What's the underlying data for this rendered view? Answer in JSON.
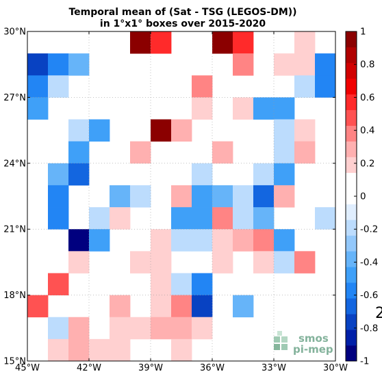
{
  "chart_data": {
    "type": "heatmap",
    "title_line1": "Temporal mean of (Sat - TSG (LEGOS-DM))",
    "title_line2": "in 1°x1° boxes over 2015-2020",
    "x_ticks": [
      {
        "value": -45,
        "label": "45°W"
      },
      {
        "value": -42,
        "label": "42°W"
      },
      {
        "value": -39,
        "label": "39°W"
      },
      {
        "value": -36,
        "label": "36°W"
      },
      {
        "value": -33,
        "label": "33°W"
      },
      {
        "value": -30,
        "label": "30°W"
      }
    ],
    "y_ticks": [
      {
        "value": 15,
        "label": "15°N"
      },
      {
        "value": 18,
        "label": "18°N"
      },
      {
        "value": 21,
        "label": "21°N"
      },
      {
        "value": 24,
        "label": "24°N"
      },
      {
        "value": 27,
        "label": "27°N"
      },
      {
        "value": 30,
        "label": "30°N"
      }
    ],
    "xlim": [
      -45,
      -30
    ],
    "ylim": [
      15,
      30
    ],
    "grid": true,
    "colorbar": {
      "vmin": -1,
      "vmax": 1,
      "step": 0.1,
      "tick_labels": [
        {
          "value": 1,
          "label": "1"
        },
        {
          "value": 0.8,
          "label": "0.8"
        },
        {
          "value": 0.6,
          "label": "0.6"
        },
        {
          "value": 0.4,
          "label": "0.4"
        },
        {
          "value": 0.2,
          "label": "0.2"
        },
        {
          "value": 0,
          "label": "0"
        },
        {
          "value": -0.2,
          "label": "-0.2"
        },
        {
          "value": -0.4,
          "label": "-0.4"
        },
        {
          "value": -0.6,
          "label": "-0.6"
        },
        {
          "value": -0.8,
          "label": "-0.8"
        },
        {
          "value": -1,
          "label": "-1"
        }
      ],
      "colors": [
        "#00007f",
        "#001fa8",
        "#0842c2",
        "#1366e0",
        "#2285f4",
        "#3fa0f8",
        "#66b4f9",
        "#93c8fb",
        "#bcdcfd",
        "#e0eefe",
        "#ffffff",
        "#ffffff",
        "#ffd0d0",
        "#ffb0b0",
        "#ff8484",
        "#ff5252",
        "#ff2a2a",
        "#f00000",
        "#d10000",
        "#b00000",
        "#8b0000"
      ]
    },
    "cells": [
      {
        "lon": -39.5,
        "lat": 29.5,
        "value": 0.95
      },
      {
        "lon": -38.5,
        "lat": 29.5,
        "value": 0.55
      },
      {
        "lon": -35.5,
        "lat": 29.5,
        "value": 0.95
      },
      {
        "lon": -34.5,
        "lat": 29.5,
        "value": 0.55
      },
      {
        "lon": -31.5,
        "lat": 29.5,
        "value": 0.15
      },
      {
        "lon": -44.5,
        "lat": 28.5,
        "value": -0.75
      },
      {
        "lon": -43.5,
        "lat": 28.5,
        "value": -0.55
      },
      {
        "lon": -42.5,
        "lat": 28.5,
        "value": -0.35
      },
      {
        "lon": -34.5,
        "lat": 28.5,
        "value": 0.35
      },
      {
        "lon": -32.5,
        "lat": 28.5,
        "value": 0.15
      },
      {
        "lon": -31.5,
        "lat": 28.5,
        "value": 0.15
      },
      {
        "lon": -30.5,
        "lat": 28.5,
        "value": -0.55
      },
      {
        "lon": -44.5,
        "lat": 27.5,
        "value": -0.55
      },
      {
        "lon": -43.5,
        "lat": 27.5,
        "value": -0.15
      },
      {
        "lon": -36.5,
        "lat": 27.5,
        "value": 0.35
      },
      {
        "lon": -31.5,
        "lat": 27.5,
        "value": -0.15
      },
      {
        "lon": -30.5,
        "lat": 27.5,
        "value": -0.55
      },
      {
        "lon": -44.5,
        "lat": 26.5,
        "value": -0.45
      },
      {
        "lon": -36.5,
        "lat": 26.5,
        "value": 0.15
      },
      {
        "lon": -34.5,
        "lat": 26.5,
        "value": 0.15
      },
      {
        "lon": -33.5,
        "lat": 26.5,
        "value": -0.45
      },
      {
        "lon": -32.5,
        "lat": 26.5,
        "value": -0.45
      },
      {
        "lon": -42.5,
        "lat": 25.5,
        "value": -0.15
      },
      {
        "lon": -41.5,
        "lat": 25.5,
        "value": -0.45
      },
      {
        "lon": -38.5,
        "lat": 25.5,
        "value": 0.95
      },
      {
        "lon": -37.5,
        "lat": 25.5,
        "value": 0.25
      },
      {
        "lon": -32.5,
        "lat": 25.5,
        "value": -0.15
      },
      {
        "lon": -31.5,
        "lat": 25.5,
        "value": 0.15
      },
      {
        "lon": -42.5,
        "lat": 24.5,
        "value": -0.45
      },
      {
        "lon": -39.5,
        "lat": 24.5,
        "value": 0.25
      },
      {
        "lon": -35.5,
        "lat": 24.5,
        "value": 0.25
      },
      {
        "lon": -32.5,
        "lat": 24.5,
        "value": -0.15
      },
      {
        "lon": -31.5,
        "lat": 24.5,
        "value": 0.25
      },
      {
        "lon": -43.5,
        "lat": 23.5,
        "value": -0.35
      },
      {
        "lon": -42.5,
        "lat": 23.5,
        "value": -0.65
      },
      {
        "lon": -36.5,
        "lat": 23.5,
        "value": -0.15
      },
      {
        "lon": -33.5,
        "lat": 23.5,
        "value": -0.15
      },
      {
        "lon": -32.5,
        "lat": 23.5,
        "value": -0.45
      },
      {
        "lon": -43.5,
        "lat": 22.5,
        "value": -0.55
      },
      {
        "lon": -40.5,
        "lat": 22.5,
        "value": -0.35
      },
      {
        "lon": -39.5,
        "lat": 22.5,
        "value": -0.15
      },
      {
        "lon": -37.5,
        "lat": 22.5,
        "value": 0.25
      },
      {
        "lon": -36.5,
        "lat": 22.5,
        "value": -0.45
      },
      {
        "lon": -35.5,
        "lat": 22.5,
        "value": -0.35
      },
      {
        "lon": -34.5,
        "lat": 22.5,
        "value": -0.15
      },
      {
        "lon": -33.5,
        "lat": 22.5,
        "value": -0.65
      },
      {
        "lon": -32.5,
        "lat": 22.5,
        "value": 0.25
      },
      {
        "lon": -43.5,
        "lat": 21.5,
        "value": -0.55
      },
      {
        "lon": -41.5,
        "lat": 21.5,
        "value": -0.15
      },
      {
        "lon": -40.5,
        "lat": 21.5,
        "value": 0.15
      },
      {
        "lon": -37.5,
        "lat": 21.5,
        "value": -0.45
      },
      {
        "lon": -36.5,
        "lat": 21.5,
        "value": -0.45
      },
      {
        "lon": -35.5,
        "lat": 21.5,
        "value": 0.35
      },
      {
        "lon": -34.5,
        "lat": 21.5,
        "value": -0.15
      },
      {
        "lon": -33.5,
        "lat": 21.5,
        "value": -0.35
      },
      {
        "lon": -30.5,
        "lat": 21.5,
        "value": -0.15
      },
      {
        "lon": -42.5,
        "lat": 20.5,
        "value": -0.95
      },
      {
        "lon": -41.5,
        "lat": 20.5,
        "value": -0.45
      },
      {
        "lon": -38.5,
        "lat": 20.5,
        "value": 0.15
      },
      {
        "lon": -37.5,
        "lat": 20.5,
        "value": -0.15
      },
      {
        "lon": -36.5,
        "lat": 20.5,
        "value": -0.15
      },
      {
        "lon": -35.5,
        "lat": 20.5,
        "value": 0.15
      },
      {
        "lon": -34.5,
        "lat": 20.5,
        "value": 0.25
      },
      {
        "lon": -33.5,
        "lat": 20.5,
        "value": 0.35
      },
      {
        "lon": -32.5,
        "lat": 20.5,
        "value": -0.45
      },
      {
        "lon": -42.5,
        "lat": 19.5,
        "value": 0.15
      },
      {
        "lon": -39.5,
        "lat": 19.5,
        "value": 0.15
      },
      {
        "lon": -38.5,
        "lat": 19.5,
        "value": 0.15
      },
      {
        "lon": -35.5,
        "lat": 19.5,
        "value": 0.15
      },
      {
        "lon": -33.5,
        "lat": 19.5,
        "value": 0.15
      },
      {
        "lon": -32.5,
        "lat": 19.5,
        "value": -0.15
      },
      {
        "lon": -31.5,
        "lat": 19.5,
        "value": 0.35
      },
      {
        "lon": -43.5,
        "lat": 18.5,
        "value": 0.45
      },
      {
        "lon": -38.5,
        "lat": 18.5,
        "value": 0.15
      },
      {
        "lon": -37.5,
        "lat": 18.5,
        "value": -0.15
      },
      {
        "lon": -36.5,
        "lat": 18.5,
        "value": -0.55
      },
      {
        "lon": -44.5,
        "lat": 17.5,
        "value": 0.45
      },
      {
        "lon": -40.5,
        "lat": 17.5,
        "value": 0.25
      },
      {
        "lon": -38.5,
        "lat": 17.5,
        "value": 0.15
      },
      {
        "lon": -37.5,
        "lat": 17.5,
        "value": 0.35
      },
      {
        "lon": -36.5,
        "lat": 17.5,
        "value": -0.75
      },
      {
        "lon": -34.5,
        "lat": 17.5,
        "value": -0.35
      },
      {
        "lon": -43.5,
        "lat": 16.5,
        "value": -0.15
      },
      {
        "lon": -42.5,
        "lat": 16.5,
        "value": 0.25
      },
      {
        "lon": -40.5,
        "lat": 16.5,
        "value": 0.15
      },
      {
        "lon": -39.5,
        "lat": 16.5,
        "value": 0.15
      },
      {
        "lon": -38.5,
        "lat": 16.5,
        "value": 0.25
      },
      {
        "lon": -37.5,
        "lat": 16.5,
        "value": 0.25
      },
      {
        "lon": -36.5,
        "lat": 16.5,
        "value": 0.15
      },
      {
        "lon": -43.5,
        "lat": 15.5,
        "value": 0.15
      },
      {
        "lon": -42.5,
        "lat": 15.5,
        "value": 0.25
      },
      {
        "lon": -41.5,
        "lat": 15.5,
        "value": 0.15
      },
      {
        "lon": -40.5,
        "lat": 15.5,
        "value": 0.15
      },
      {
        "lon": -37.5,
        "lat": 15.5,
        "value": 0.15
      }
    ]
  },
  "watermark": {
    "line1": "smos",
    "line2": "pi-mep",
    "color": "#6ea58a"
  },
  "edge_glyph": "2"
}
